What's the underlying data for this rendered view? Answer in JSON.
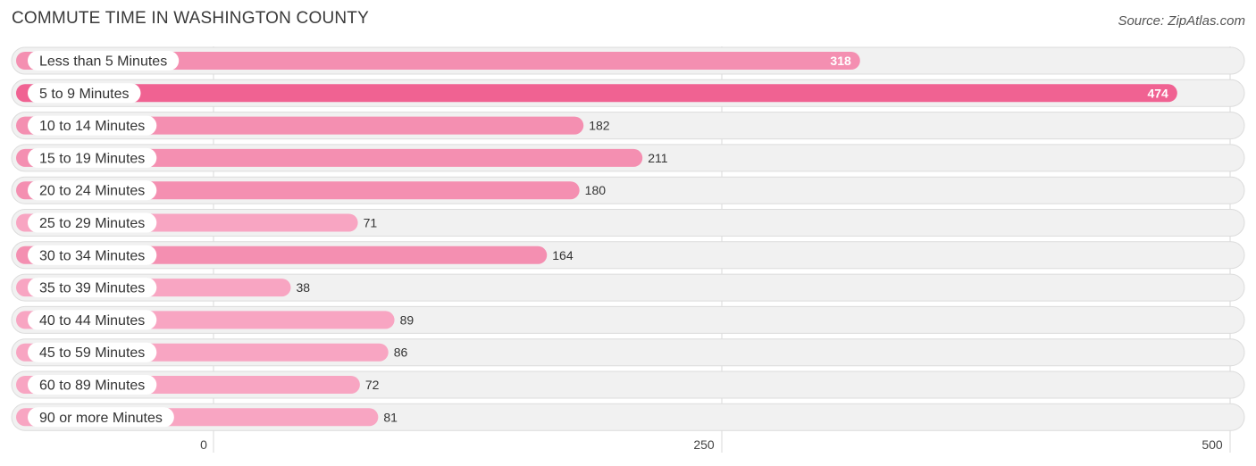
{
  "title": "COMMUTE TIME IN WASHINGTON COUNTY",
  "source": "Source: ZipAtlas.com",
  "colors": {
    "bar_high": "#f06292",
    "bar_mid": "#f48fb1",
    "bar_low": "#f8a5c2",
    "track_bg": "#f1f1f1",
    "track_border": "#dcdcdc",
    "grid": "#d8d8d8",
    "label_text": "#333333",
    "value_text_dark": "#333333",
    "value_text_light": "#ffffff"
  },
  "chart_data": {
    "type": "bar",
    "orientation": "horizontal",
    "categories": [
      "Less than 5 Minutes",
      "5 to 9 Minutes",
      "10 to 14 Minutes",
      "15 to 19 Minutes",
      "20 to 24 Minutes",
      "25 to 29 Minutes",
      "30 to 34 Minutes",
      "35 to 39 Minutes",
      "40 to 44 Minutes",
      "45 to 59 Minutes",
      "60 to 89 Minutes",
      "90 or more Minutes"
    ],
    "values": [
      318,
      474,
      182,
      211,
      180,
      71,
      164,
      38,
      89,
      86,
      72,
      81
    ],
    "value_labels": [
      "318",
      "474",
      "182",
      "211",
      "180",
      "71",
      "164",
      "38",
      "89",
      "86",
      "72",
      "81"
    ],
    "xlim": [
      0,
      500
    ],
    "xticks": [
      0,
      250,
      500
    ],
    "xtick_labels": [
      "0",
      "250",
      "500"
    ],
    "grid": true
  }
}
